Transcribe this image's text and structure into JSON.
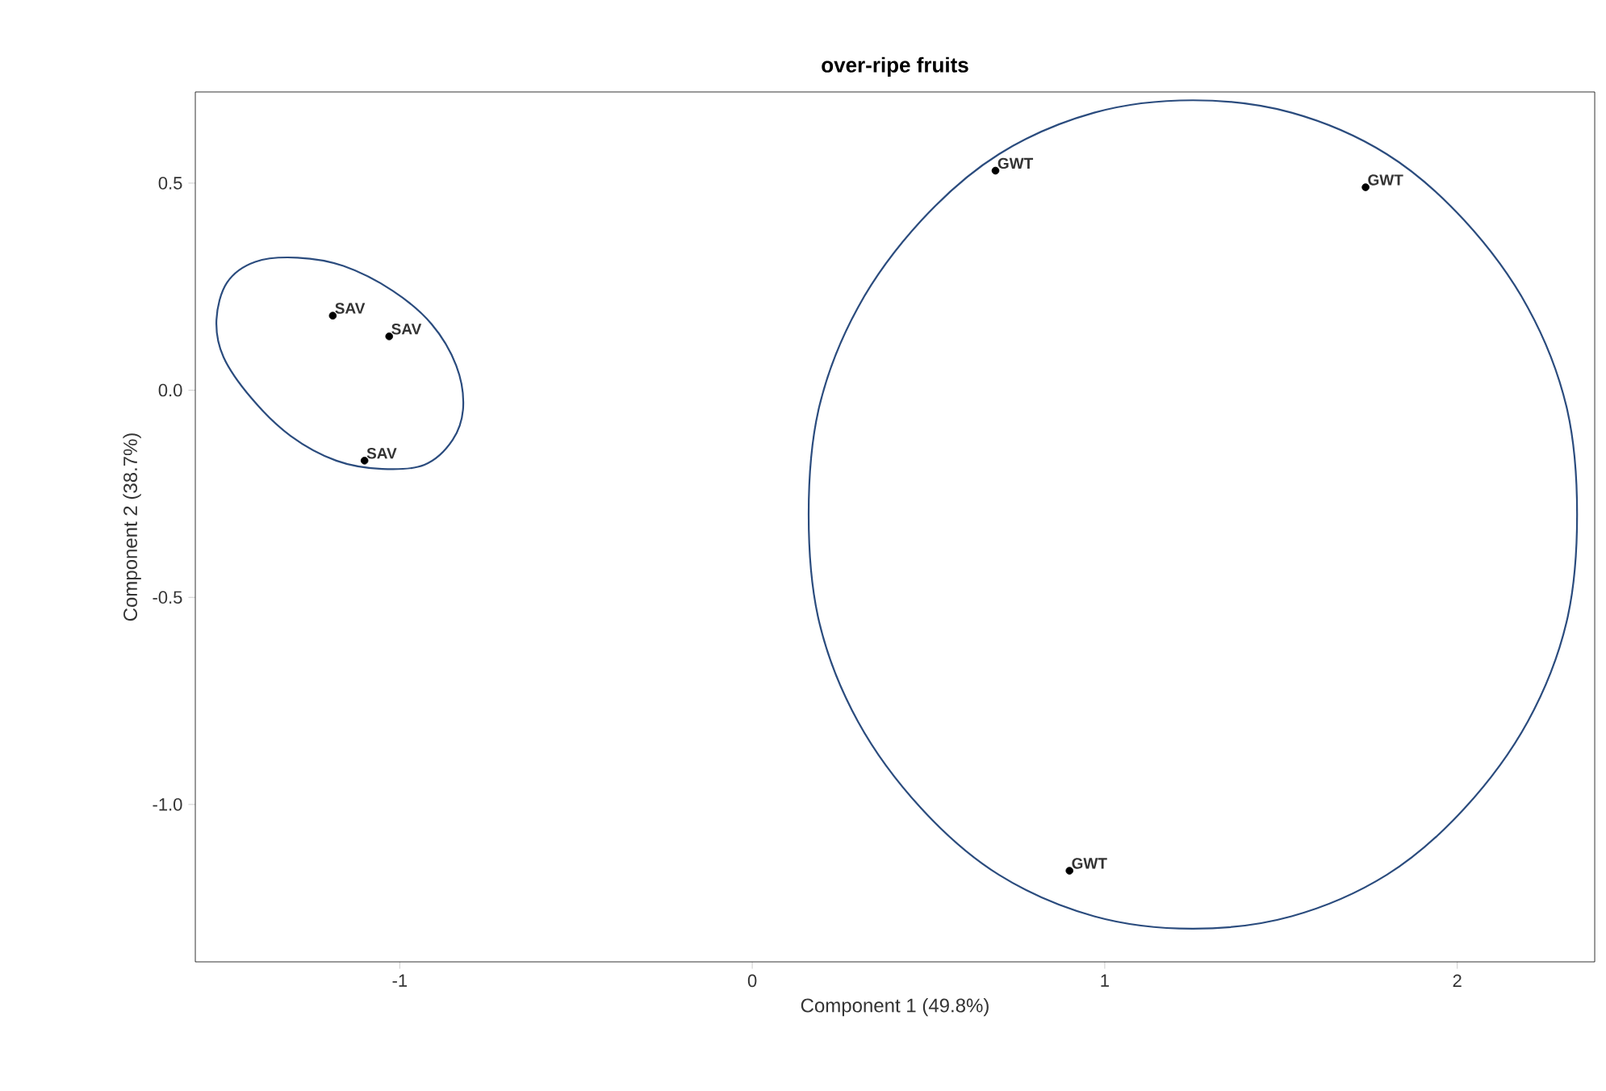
{
  "chart_data": {
    "type": "scatter",
    "title": "over-ripe fruits",
    "xlabel": "Component 1 (49.8%)",
    "ylabel": "Component 2 (38.7%)",
    "xlim": [
      -1.58,
      2.39
    ],
    "ylim": [
      -1.38,
      0.72
    ],
    "xticks": [
      -1,
      0,
      1,
      2
    ],
    "yticks": [
      {
        "value": -1.0,
        "label": "-1.0"
      },
      {
        "value": -0.5,
        "label": "-0.5"
      },
      {
        "value": 0.0,
        "label": "0.0"
      },
      {
        "value": 0.5,
        "label": "0.5"
      }
    ],
    "grid": false,
    "series": [
      {
        "color": "#000000",
        "x": [
          -1.19,
          -1.03,
          -1.1
        ],
        "values": [
          0.18,
          0.13,
          -0.17
        ],
        "value_labels": [
          "SAV",
          "SAV",
          "SAV"
        ]
      },
      {
        "color": "#000000",
        "x": [
          0.69,
          1.74,
          0.9
        ],
        "values": [
          0.53,
          0.49,
          -1.16
        ],
        "value_labels": [
          "GWT",
          "GWT",
          "GWT"
        ]
      }
    ]
  }
}
